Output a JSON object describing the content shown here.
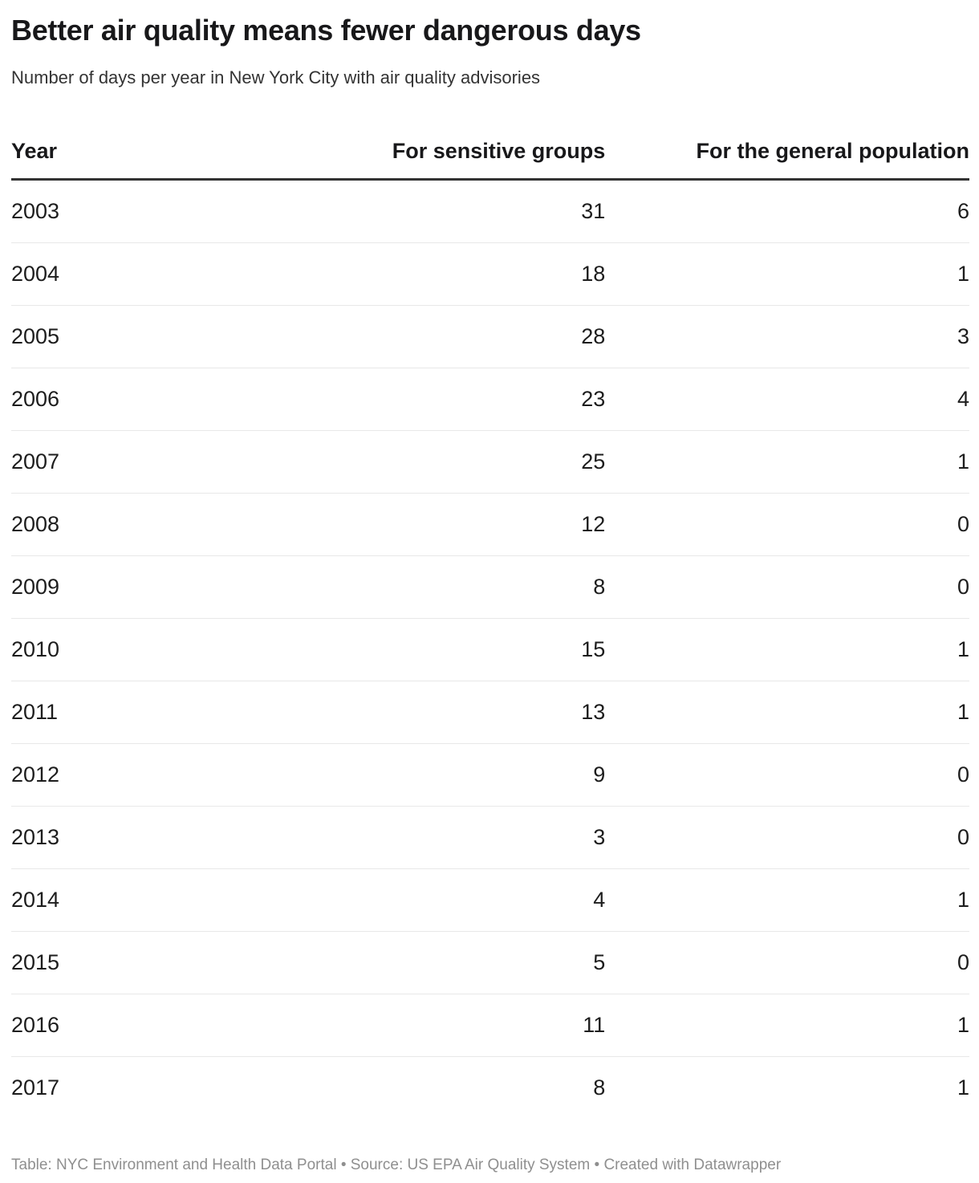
{
  "chart_data": {
    "type": "table",
    "title": "Better air quality means fewer dangerous days",
    "subtitle": "Number of days per year in New York City with air quality advisories",
    "columns": [
      "Year",
      "For sensitive groups",
      "For the general population"
    ],
    "rows": [
      [
        "2003",
        31,
        6
      ],
      [
        "2004",
        18,
        1
      ],
      [
        "2005",
        28,
        3
      ],
      [
        "2006",
        23,
        4
      ],
      [
        "2007",
        25,
        1
      ],
      [
        "2008",
        12,
        0
      ],
      [
        "2009",
        8,
        0
      ],
      [
        "2010",
        15,
        1
      ],
      [
        "2011",
        13,
        1
      ],
      [
        "2012",
        9,
        0
      ],
      [
        "2013",
        3,
        0
      ],
      [
        "2014",
        4,
        1
      ],
      [
        "2015",
        5,
        0
      ],
      [
        "2016",
        11,
        1
      ],
      [
        "2017",
        8,
        1
      ]
    ],
    "footer_note": "Table: NYC Environment and Health Data Portal • Source: US EPA Air Quality System • Created with Datawrapper",
    "layout_hints": {
      "header_rule_color": "#333333",
      "row_divider_color": "#e8e8e8",
      "footer_text_color": "#8f8f8f",
      "numeric_columns_alignment": "right"
    }
  }
}
